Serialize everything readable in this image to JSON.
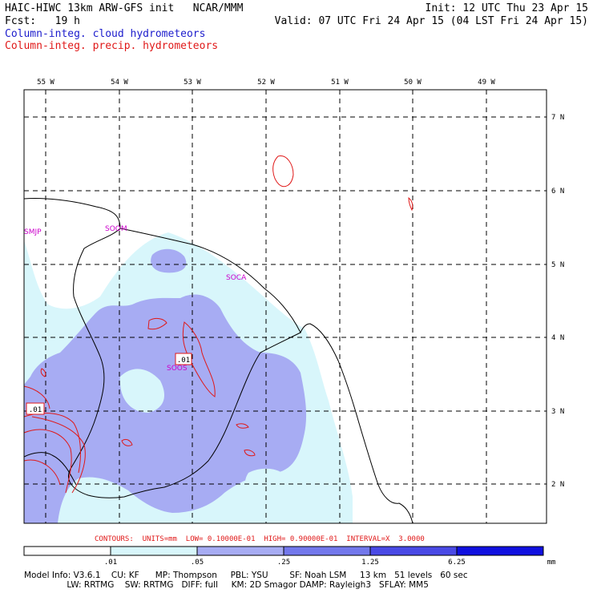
{
  "header": {
    "left_line1": "HAIC-HIWC 13km ARW-GFS init   NCAR/MMM",
    "left_line2": "Fcst:   19 h",
    "right_line1": "Init: 12 UTC Thu 23 Apr 15",
    "right_line2": "Valid: 07 UTC Fri 24 Apr 15 (04 LST Fri 24 Apr 15)",
    "legend_cloud": "Column-integ. cloud hydrometeors",
    "legend_precip": "Column-integ. precip. hydrometeors",
    "legend_cloud_color": "#1c1ccc",
    "legend_precip_color": "#e01818"
  },
  "map": {
    "lon_labels": [
      "55 W",
      "54 W",
      "53 W",
      "52 W",
      "51 W",
      "50 W",
      "49 W"
    ],
    "lat_labels": [
      "7 N",
      "6 N",
      "5 N",
      "4 N",
      "3 N",
      "2 N"
    ],
    "stations": [
      "SMJP",
      "SOOM",
      "SOCA",
      "SOOS"
    ],
    "station_color": "#cc00cc",
    "contour_labels": [
      ".01",
      ".01"
    ],
    "fill_colors": {
      "light": "#d8f6fb",
      "medium": "#a7acf3",
      "dark": "#7378ec"
    }
  },
  "contours_note": "CONTOURS:  UNITS=mm  LOW= 0.10000E-01  HIGH= 0.90000E-01  INTERVAL=X  3.0000",
  "colorbar": {
    "tick_labels": [
      ".01",
      ".05",
      ".25",
      "1.25",
      "6.25"
    ],
    "unit": "mm",
    "colors": [
      "#ffffff",
      "#d8f6fb",
      "#a7acf3",
      "#7378ec",
      "#4a4ae6",
      "#1010e0"
    ]
  },
  "model_info": {
    "line1": "Model Info: V3.6.1    CU: KF      MP: Thompson     PBL: YSU        SF: Noah LSM     13 km   51 levels   60 sec",
    "line2": "                LW: RRTMG    SW: RRTMG   DIFF: full     KM: 2D Smagor DAMP: Rayleigh3   SFLAY: MM5"
  }
}
